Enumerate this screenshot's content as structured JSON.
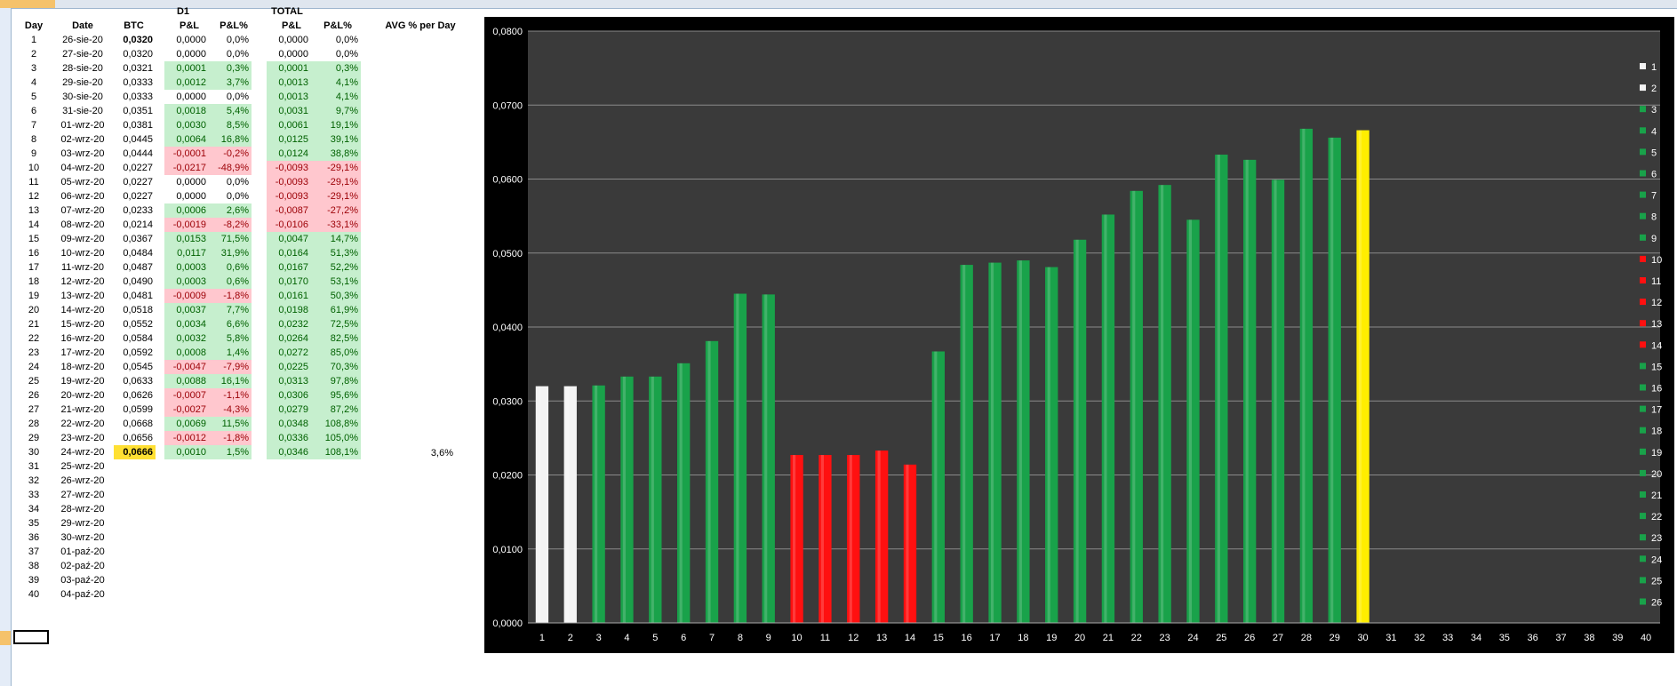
{
  "headers": {
    "day": "Day",
    "date": "Date",
    "btc": "BTC",
    "group_d1": "D1",
    "group_total": "TOTAL",
    "pl": "P&L",
    "plpct": "P&L%",
    "tpl": "P&L",
    "tplpct": "P&L%",
    "avg": "AVG % per Day"
  },
  "avg_value": "3,6%",
  "rows": [
    {
      "day": "1",
      "date": "26-sie-20",
      "btc": "0,0320",
      "d1pl": "0,0000",
      "d1pct": "0,0%",
      "d1s": "n",
      "tpl": "0,0000",
      "tpct": "0,0%",
      "ts": "n"
    },
    {
      "day": "2",
      "date": "27-sie-20",
      "btc": "0,0320",
      "d1pl": "0,0000",
      "d1pct": "0,0%",
      "d1s": "n",
      "tpl": "0,0000",
      "tpct": "0,0%",
      "ts": "n"
    },
    {
      "day": "3",
      "date": "28-sie-20",
      "btc": "0,0321",
      "d1pl": "0,0001",
      "d1pct": "0,3%",
      "d1s": "p",
      "tpl": "0,0001",
      "tpct": "0,3%",
      "ts": "p"
    },
    {
      "day": "4",
      "date": "29-sie-20",
      "btc": "0,0333",
      "d1pl": "0,0012",
      "d1pct": "3,7%",
      "d1s": "p",
      "tpl": "0,0013",
      "tpct": "4,1%",
      "ts": "p"
    },
    {
      "day": "5",
      "date": "30-sie-20",
      "btc": "0,0333",
      "d1pl": "0,0000",
      "d1pct": "0,0%",
      "d1s": "n",
      "tpl": "0,0013",
      "tpct": "4,1%",
      "ts": "p"
    },
    {
      "day": "6",
      "date": "31-sie-20",
      "btc": "0,0351",
      "d1pl": "0,0018",
      "d1pct": "5,4%",
      "d1s": "p",
      "tpl": "0,0031",
      "tpct": "9,7%",
      "ts": "p"
    },
    {
      "day": "7",
      "date": "01-wrz-20",
      "btc": "0,0381",
      "d1pl": "0,0030",
      "d1pct": "8,5%",
      "d1s": "p",
      "tpl": "0,0061",
      "tpct": "19,1%",
      "ts": "p"
    },
    {
      "day": "8",
      "date": "02-wrz-20",
      "btc": "0,0445",
      "d1pl": "0,0064",
      "d1pct": "16,8%",
      "d1s": "p",
      "tpl": "0,0125",
      "tpct": "39,1%",
      "ts": "p"
    },
    {
      "day": "9",
      "date": "03-wrz-20",
      "btc": "0,0444",
      "d1pl": "-0,0001",
      "d1pct": "-0,2%",
      "d1s": "m",
      "tpl": "0,0124",
      "tpct": "38,8%",
      "ts": "p"
    },
    {
      "day": "10",
      "date": "04-wrz-20",
      "btc": "0,0227",
      "d1pl": "-0,0217",
      "d1pct": "-48,9%",
      "d1s": "m",
      "tpl": "-0,0093",
      "tpct": "-29,1%",
      "ts": "m"
    },
    {
      "day": "11",
      "date": "05-wrz-20",
      "btc": "0,0227",
      "d1pl": "0,0000",
      "d1pct": "0,0%",
      "d1s": "n",
      "tpl": "-0,0093",
      "tpct": "-29,1%",
      "ts": "m"
    },
    {
      "day": "12",
      "date": "06-wrz-20",
      "btc": "0,0227",
      "d1pl": "0,0000",
      "d1pct": "0,0%",
      "d1s": "n",
      "tpl": "-0,0093",
      "tpct": "-29,1%",
      "ts": "m"
    },
    {
      "day": "13",
      "date": "07-wrz-20",
      "btc": "0,0233",
      "d1pl": "0,0006",
      "d1pct": "2,6%",
      "d1s": "p",
      "tpl": "-0,0087",
      "tpct": "-27,2%",
      "ts": "m"
    },
    {
      "day": "14",
      "date": "08-wrz-20",
      "btc": "0,0214",
      "d1pl": "-0,0019",
      "d1pct": "-8,2%",
      "d1s": "m",
      "tpl": "-0,0106",
      "tpct": "-33,1%",
      "ts": "m"
    },
    {
      "day": "15",
      "date": "09-wrz-20",
      "btc": "0,0367",
      "d1pl": "0,0153",
      "d1pct": "71,5%",
      "d1s": "p",
      "tpl": "0,0047",
      "tpct": "14,7%",
      "ts": "p"
    },
    {
      "day": "16",
      "date": "10-wrz-20",
      "btc": "0,0484",
      "d1pl": "0,0117",
      "d1pct": "31,9%",
      "d1s": "p",
      "tpl": "0,0164",
      "tpct": "51,3%",
      "ts": "p"
    },
    {
      "day": "17",
      "date": "11-wrz-20",
      "btc": "0,0487",
      "d1pl": "0,0003",
      "d1pct": "0,6%",
      "d1s": "p",
      "tpl": "0,0167",
      "tpct": "52,2%",
      "ts": "p"
    },
    {
      "day": "18",
      "date": "12-wrz-20",
      "btc": "0,0490",
      "d1pl": "0,0003",
      "d1pct": "0,6%",
      "d1s": "p",
      "tpl": "0,0170",
      "tpct": "53,1%",
      "ts": "p"
    },
    {
      "day": "19",
      "date": "13-wrz-20",
      "btc": "0,0481",
      "d1pl": "-0,0009",
      "d1pct": "-1,8%",
      "d1s": "m",
      "tpl": "0,0161",
      "tpct": "50,3%",
      "ts": "p"
    },
    {
      "day": "20",
      "date": "14-wrz-20",
      "btc": "0,0518",
      "d1pl": "0,0037",
      "d1pct": "7,7%",
      "d1s": "p",
      "tpl": "0,0198",
      "tpct": "61,9%",
      "ts": "p"
    },
    {
      "day": "21",
      "date": "15-wrz-20",
      "btc": "0,0552",
      "d1pl": "0,0034",
      "d1pct": "6,6%",
      "d1s": "p",
      "tpl": "0,0232",
      "tpct": "72,5%",
      "ts": "p"
    },
    {
      "day": "22",
      "date": "16-wrz-20",
      "btc": "0,0584",
      "d1pl": "0,0032",
      "d1pct": "5,8%",
      "d1s": "p",
      "tpl": "0,0264",
      "tpct": "82,5%",
      "ts": "p"
    },
    {
      "day": "23",
      "date": "17-wrz-20",
      "btc": "0,0592",
      "d1pl": "0,0008",
      "d1pct": "1,4%",
      "d1s": "p",
      "tpl": "0,0272",
      "tpct": "85,0%",
      "ts": "p"
    },
    {
      "day": "24",
      "date": "18-wrz-20",
      "btc": "0,0545",
      "d1pl": "-0,0047",
      "d1pct": "-7,9%",
      "d1s": "m",
      "tpl": "0,0225",
      "tpct": "70,3%",
      "ts": "p"
    },
    {
      "day": "25",
      "date": "19-wrz-20",
      "btc": "0,0633",
      "d1pl": "0,0088",
      "d1pct": "16,1%",
      "d1s": "p",
      "tpl": "0,0313",
      "tpct": "97,8%",
      "ts": "p"
    },
    {
      "day": "26",
      "date": "20-wrz-20",
      "btc": "0,0626",
      "d1pl": "-0,0007",
      "d1pct": "-1,1%",
      "d1s": "m",
      "tpl": "0,0306",
      "tpct": "95,6%",
      "ts": "p"
    },
    {
      "day": "27",
      "date": "21-wrz-20",
      "btc": "0,0599",
      "d1pl": "-0,0027",
      "d1pct": "-4,3%",
      "d1s": "m",
      "tpl": "0,0279",
      "tpct": "87,2%",
      "ts": "p"
    },
    {
      "day": "28",
      "date": "22-wrz-20",
      "btc": "0,0668",
      "d1pl": "0,0069",
      "d1pct": "11,5%",
      "d1s": "p",
      "tpl": "0,0348",
      "tpct": "108,8%",
      "ts": "p"
    },
    {
      "day": "29",
      "date": "23-wrz-20",
      "btc": "0,0656",
      "d1pl": "-0,0012",
      "d1pct": "-1,8%",
      "d1s": "m",
      "tpl": "0,0336",
      "tpct": "105,0%",
      "ts": "p"
    },
    {
      "day": "30",
      "date": "24-wrz-20",
      "btc": "0,0666",
      "d1pl": "0,0010",
      "d1pct": "1,5%",
      "d1s": "p",
      "tpl": "0,0346",
      "tpct": "108,1%",
      "ts": "p",
      "btc_highlight": "#ffe033"
    },
    {
      "day": "31",
      "date": "25-wrz-20"
    },
    {
      "day": "32",
      "date": "26-wrz-20"
    },
    {
      "day": "33",
      "date": "27-wrz-20"
    },
    {
      "day": "34",
      "date": "28-wrz-20"
    },
    {
      "day": "35",
      "date": "29-wrz-20"
    },
    {
      "day": "36",
      "date": "30-wrz-20"
    },
    {
      "day": "37",
      "date": "01-paź-20"
    },
    {
      "day": "38",
      "date": "02-paź-20"
    },
    {
      "day": "39",
      "date": "03-paź-20"
    },
    {
      "day": "40",
      "date": "04-paź-20"
    }
  ],
  "chart_data": {
    "type": "bar",
    "categories": [
      "1",
      "2",
      "3",
      "4",
      "5",
      "6",
      "7",
      "8",
      "9",
      "10",
      "11",
      "12",
      "13",
      "14",
      "15",
      "16",
      "17",
      "18",
      "19",
      "20",
      "21",
      "22",
      "23",
      "24",
      "25",
      "26",
      "27",
      "28",
      "29",
      "30",
      "31",
      "32",
      "33",
      "34",
      "35",
      "36",
      "37",
      "38",
      "39",
      "40"
    ],
    "values": [
      0.032,
      0.032,
      0.0321,
      0.0333,
      0.0333,
      0.0351,
      0.0381,
      0.0445,
      0.0444,
      0.0227,
      0.0227,
      0.0227,
      0.0233,
      0.0214,
      0.0367,
      0.0484,
      0.0487,
      0.049,
      0.0481,
      0.0518,
      0.0552,
      0.0584,
      0.0592,
      0.0545,
      0.0633,
      0.0626,
      0.0599,
      0.0668,
      0.0656,
      0.0666,
      null,
      null,
      null,
      null,
      null,
      null,
      null,
      null,
      null,
      null
    ],
    "bar_colors": [
      "white",
      "white",
      "green",
      "green",
      "green",
      "green",
      "green",
      "green",
      "green",
      "red",
      "red",
      "red",
      "red",
      "red",
      "green",
      "green",
      "green",
      "green",
      "green",
      "green",
      "green",
      "green",
      "green",
      "green",
      "green",
      "green",
      "green",
      "green",
      "green",
      "yellow"
    ],
    "ylim": [
      0,
      0.08
    ],
    "yticks": [
      "0,0000",
      "0,0100",
      "0,0200",
      "0,0300",
      "0,0400",
      "0,0500",
      "0,0600",
      "0,0700",
      "0,0800"
    ],
    "legend": [
      "1",
      "2",
      "3",
      "4",
      "5",
      "6",
      "7",
      "8",
      "9",
      "10",
      "11",
      "12",
      "13",
      "14",
      "15",
      "16",
      "17",
      "18",
      "19",
      "20",
      "21",
      "22",
      "23",
      "24",
      "25",
      "26"
    ],
    "legend_placement": "right",
    "grid": true,
    "colors": {
      "frame": "#000000",
      "plot": "#3a3a3a",
      "green": "#19a24a",
      "red": "#ff1010",
      "white": "#f4f4f4",
      "yellow": "#ffee00",
      "grid": "#8a8a8a",
      "text": "#ffffff"
    }
  }
}
